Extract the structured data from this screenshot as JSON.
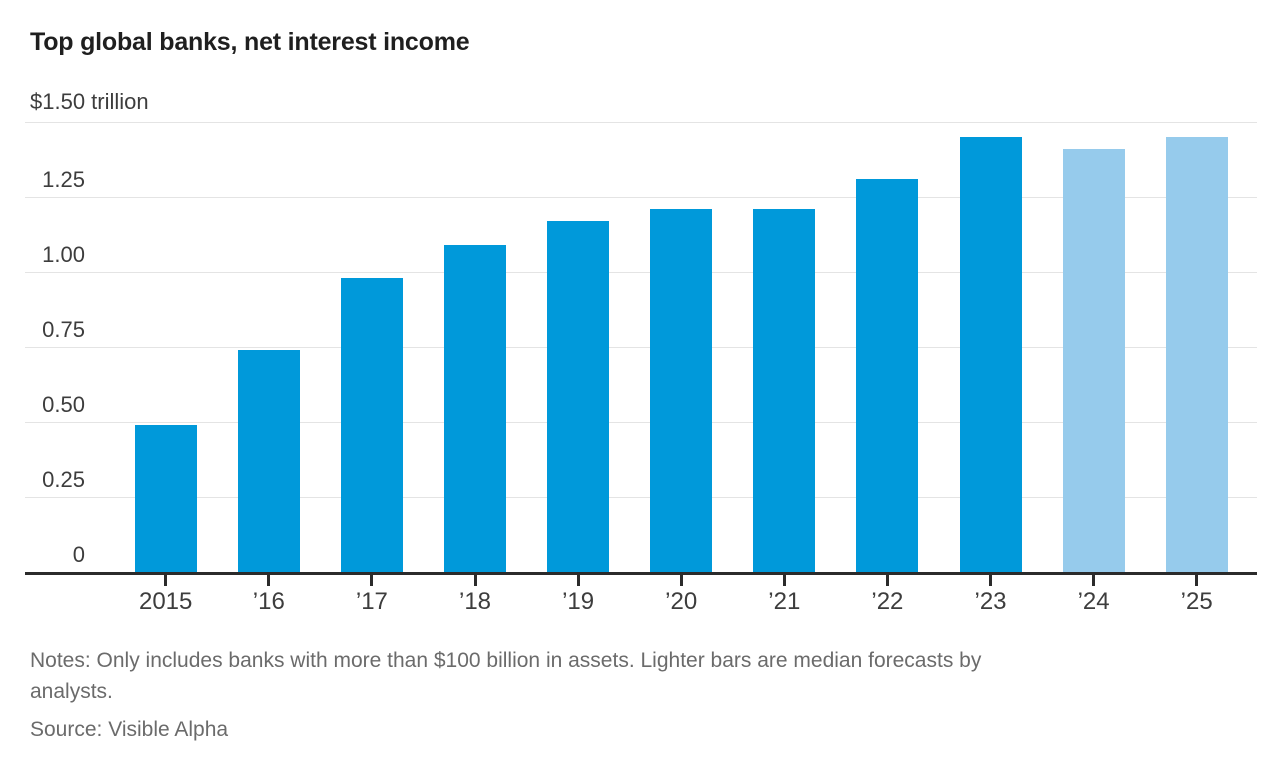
{
  "title": "Top global banks, net interest income",
  "notes_lines": [
    "Notes: Only includes banks with more than $100 billion in assets. Lighter bars are median forecasts by",
    "analysts."
  ],
  "source": "Source: Visible Alpha",
  "colors": {
    "bar": "#0099da",
    "bar_forecast": "#96cbec",
    "gridline": "#e4e4e4",
    "axis": "#2b2b2b",
    "title_text": "#1f1f1f",
    "axis_label_text": "#3d3d3d",
    "notes_text": "#6b6b6b"
  },
  "chart_data": {
    "type": "bar",
    "title": "Top global banks, net interest income",
    "unit": "USD trillions",
    "categories": [
      "2015",
      "’16",
      "’17",
      "’18",
      "’19",
      "’20",
      "’21",
      "’22",
      "’23",
      "’24",
      "’25"
    ],
    "values": [
      0.49,
      0.74,
      0.98,
      1.09,
      1.17,
      1.21,
      1.21,
      1.31,
      1.45,
      1.41,
      1.45
    ],
    "forecast_flags": [
      false,
      false,
      false,
      false,
      false,
      false,
      false,
      false,
      false,
      true,
      true
    ],
    "xlabel": "",
    "ylabel": "",
    "grid": true,
    "legend_position": "none",
    "y_axis": {
      "top_label": "$1.50 trillion",
      "ylim": [
        0,
        1.5
      ],
      "gridline_values": [
        1.5,
        1.25,
        1.0,
        0.75,
        0.5,
        0.25
      ],
      "tick_labels": [
        {
          "label": "1.25",
          "value": 1.25
        },
        {
          "label": "1.00",
          "value": 1.0
        },
        {
          "label": "0.75",
          "value": 0.75
        },
        {
          "label": "0.50",
          "value": 0.5
        },
        {
          "label": "0.25",
          "value": 0.25
        },
        {
          "label": "0",
          "value": 0
        }
      ]
    }
  }
}
